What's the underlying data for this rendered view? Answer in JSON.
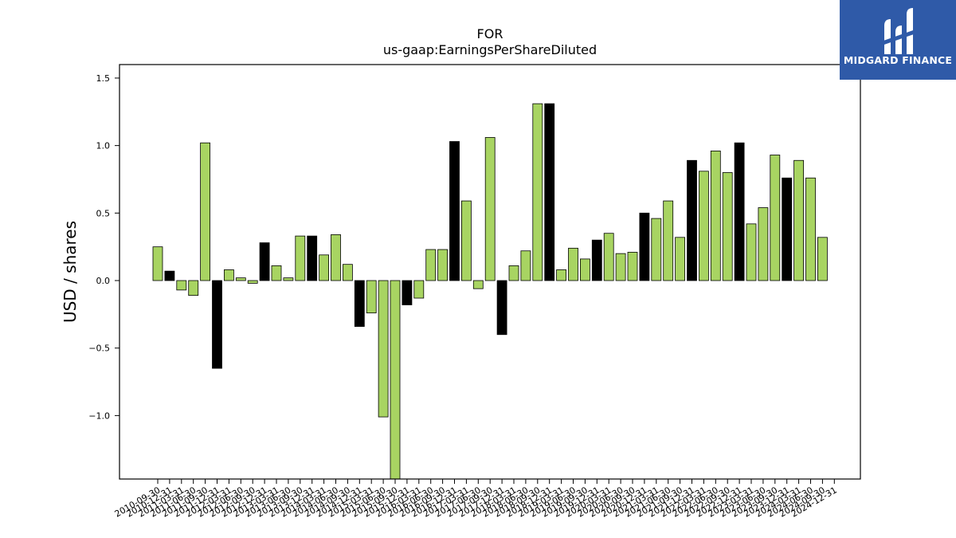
{
  "logo": {
    "text": "MIDGARD FINANCE",
    "bg_color": "#2f5aa8"
  },
  "chart_data": {
    "type": "bar",
    "title_line1": "FOR",
    "title_line2": "us-gaap:EarningsPerShareDiluted",
    "xlabel": "",
    "ylabel": "USD / shares",
    "ylim": [
      -1.47,
      1.6
    ],
    "yticks": [
      -1.0,
      -0.5,
      0.0,
      0.5,
      1.0,
      1.5
    ],
    "ytick_labels": [
      "−1.0",
      "−0.5",
      "0.0",
      "0.5",
      "1.0",
      "1.5"
    ],
    "colors": {
      "quarterly": "#a8d462",
      "annual": "#000000"
    },
    "categories": [
      "2010-09-30",
      "2010-12-31",
      "2011-03-31",
      "2011-06-30",
      "2011-09-30",
      "2011-12-31",
      "2012-03-31",
      "2012-06-30",
      "2012-09-30",
      "2012-12-31",
      "2013-03-31",
      "2013-06-30",
      "2013-09-30",
      "2013-12-31",
      "2014-03-31",
      "2014-06-30",
      "2014-09-30",
      "2014-12-31",
      "2015-03-31",
      "2015-06-30",
      "2015-09-30",
      "2015-12-31",
      "2016-03-31",
      "2016-06-30",
      "2016-09-30",
      "2016-12-31",
      "2017-03-31",
      "2017-06-30",
      "2017-09-30",
      "2017-12-31",
      "2018-03-31",
      "2018-06-30",
      "2018-09-30",
      "2018-12-31",
      "2019-03-31",
      "2019-06-30",
      "2019-09-30",
      "2019-12-31",
      "2020-03-31",
      "2020-06-30",
      "2020-09-30",
      "2020-12-31",
      "2021-03-31",
      "2021-06-30",
      "2021-09-30",
      "2021-12-31",
      "2022-03-31",
      "2022-06-30",
      "2022-09-30",
      "2022-12-31",
      "2023-03-31",
      "2023-06-30",
      "2023-09-30",
      "2023-12-31",
      "2024-03-31",
      "2024-06-30",
      "2024-09-30",
      "2024-12-31"
    ],
    "values": [
      0.25,
      0.07,
      -0.07,
      -0.11,
      1.02,
      -0.65,
      0.08,
      0.02,
      -0.02,
      0.28,
      0.11,
      0.02,
      0.33,
      0.33,
      0.19,
      0.34,
      0.12,
      -0.34,
      -0.24,
      -1.01,
      -1.47,
      -0.18,
      -0.13,
      0.23,
      0.23,
      1.03,
      0.59,
      -0.06,
      1.06,
      -0.4,
      0.11,
      0.22,
      1.31,
      1.31,
      0.08,
      0.24,
      0.16,
      0.3,
      0.35,
      0.2,
      0.21,
      0.5,
      0.46,
      0.59,
      0.32,
      0.89,
      0.81,
      0.96,
      0.8,
      1.02,
      0.42,
      0.54,
      0.93,
      0.76,
      0.89,
      0.76,
      0.32,
      0.0
    ],
    "annual": [
      false,
      true,
      false,
      false,
      false,
      true,
      false,
      false,
      false,
      true,
      false,
      false,
      false,
      true,
      false,
      false,
      false,
      true,
      false,
      false,
      false,
      true,
      false,
      false,
      false,
      true,
      false,
      false,
      false,
      true,
      false,
      false,
      false,
      true,
      false,
      false,
      false,
      true,
      false,
      false,
      false,
      true,
      false,
      false,
      false,
      true,
      false,
      false,
      false,
      true,
      false,
      false,
      false,
      true,
      false,
      false,
      false,
      true
    ]
  }
}
